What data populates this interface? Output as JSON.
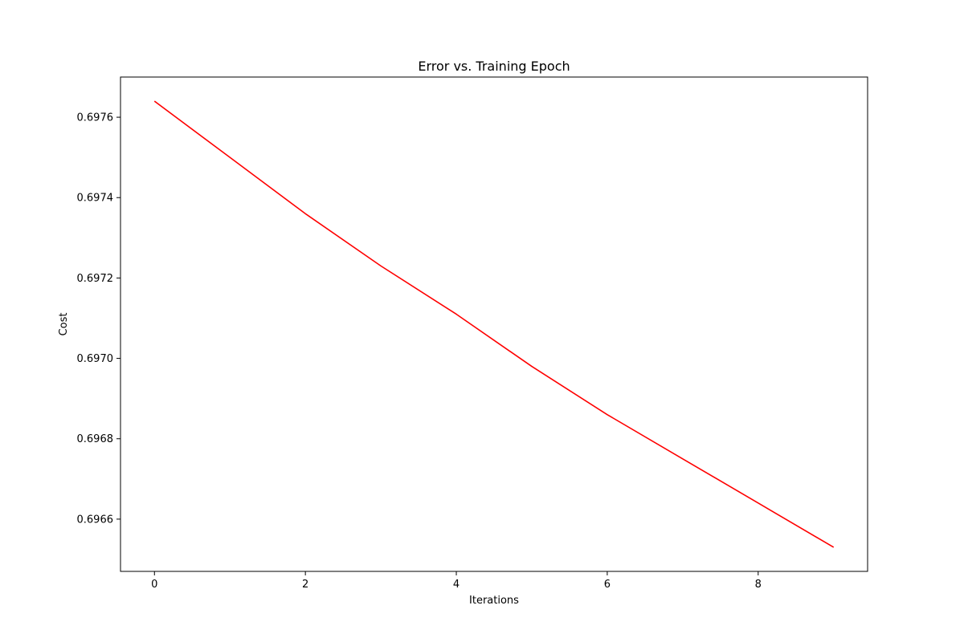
{
  "chart_data": {
    "type": "line",
    "title": "Error vs. Training Epoch",
    "xlabel": "Iterations",
    "ylabel": "Cost",
    "x": [
      0,
      1,
      2,
      3,
      4,
      5,
      6,
      7,
      8,
      9
    ],
    "series": [
      {
        "values": [
          0.69764,
          0.6975,
          0.69736,
          0.69723,
          0.69711,
          0.69698,
          0.69686,
          0.69675,
          0.69664,
          0.69653
        ],
        "color": "#ff0000"
      }
    ],
    "xlim": [
      -0.45,
      9.45
    ],
    "ylim": [
      0.69647,
      0.6977
    ],
    "xticks": [
      0,
      2,
      4,
      6,
      8
    ],
    "xtick_labels": [
      "0",
      "2",
      "4",
      "6",
      "8"
    ],
    "yticks": [
      0.6966,
      0.6968,
      0.697,
      0.6972,
      0.6974,
      0.6976
    ],
    "ytick_labels": [
      "0.6966",
      "0.6968",
      "0.6970",
      "0.6972",
      "0.6974",
      "0.6976"
    ],
    "grid": false,
    "legend": false
  }
}
